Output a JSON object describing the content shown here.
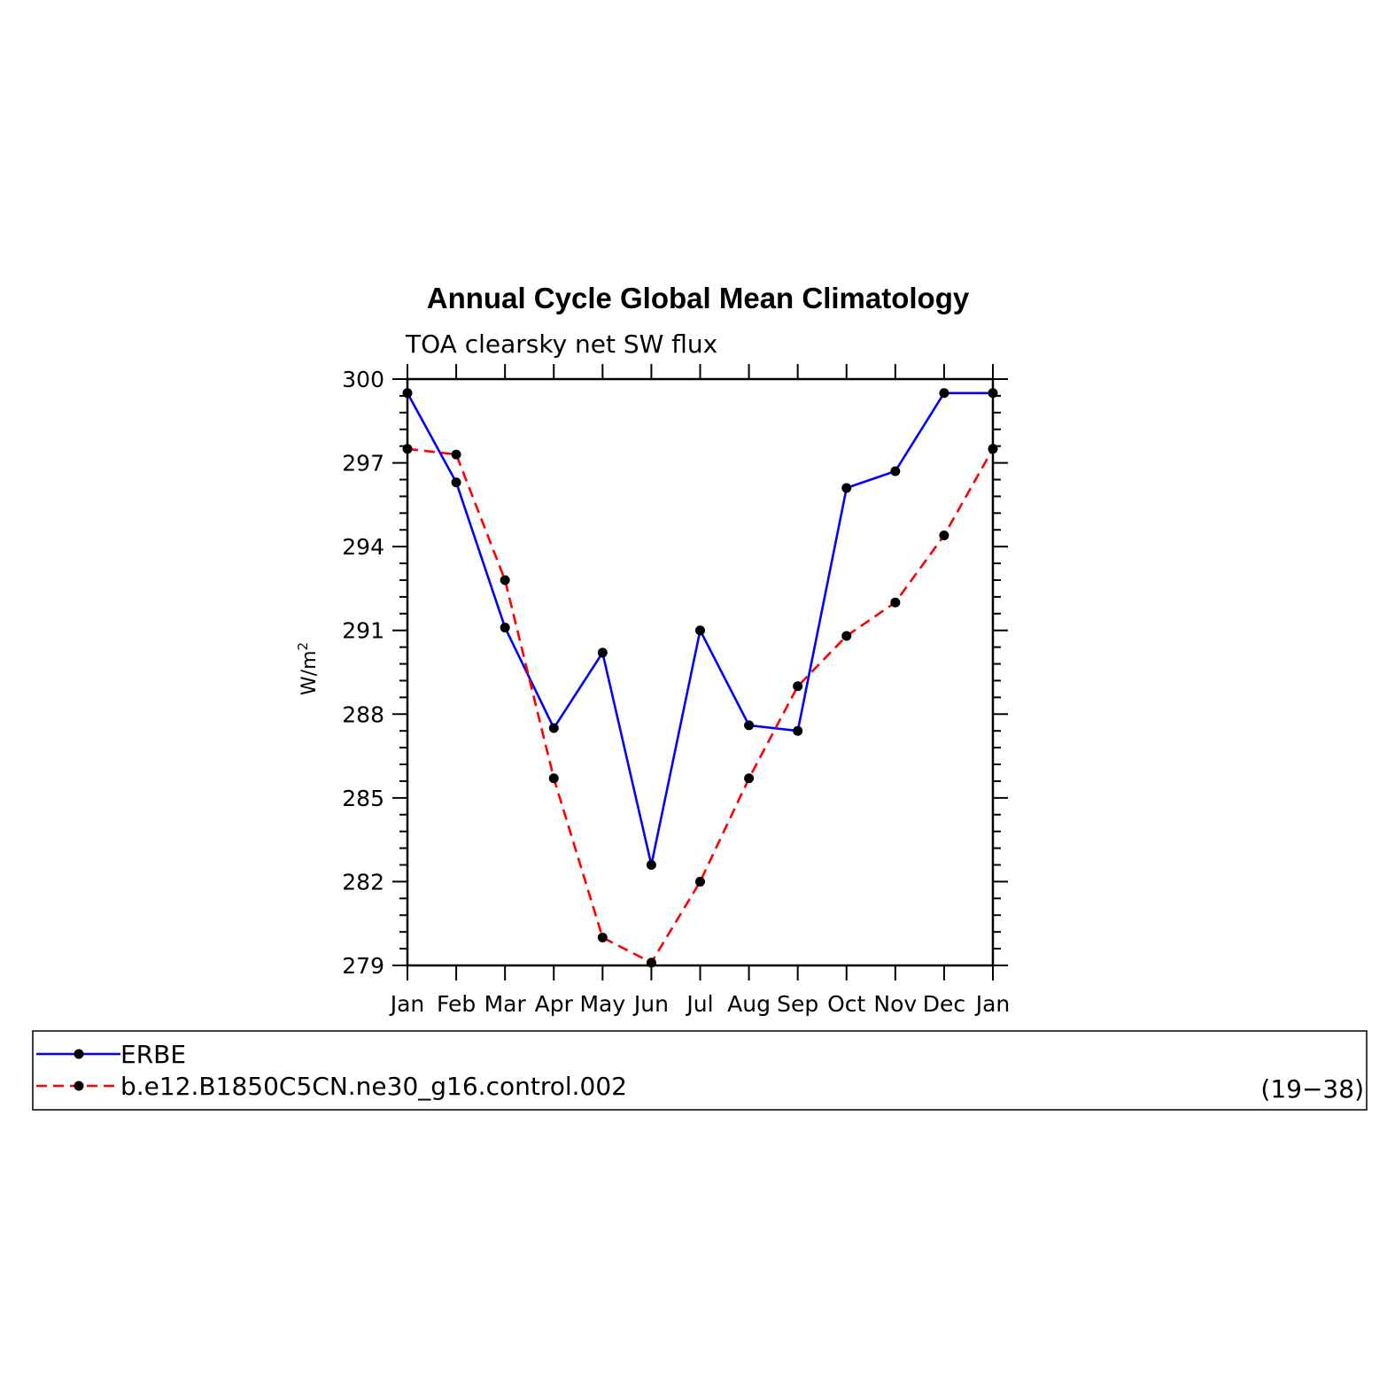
{
  "chart_data": {
    "type": "line",
    "title": "Annual Cycle Global Mean Climatology",
    "subtitle": "TOA clearsky net SW flux",
    "ylabel_base": "W/m",
    "ylabel_sup": "2",
    "ylim": [
      279,
      300
    ],
    "y_ticks": [
      279,
      282,
      285,
      288,
      291,
      294,
      297,
      300
    ],
    "categories": [
      "Jan",
      "Feb",
      "Mar",
      "Apr",
      "May",
      "Jun",
      "Jul",
      "Aug",
      "Sep",
      "Oct",
      "Nov",
      "Dec",
      "Jan"
    ],
    "series": [
      {
        "name": "ERBE",
        "color": "#0000ff",
        "dash": "solid",
        "values": [
          299.5,
          296.3,
          291.1,
          287.5,
          290.2,
          282.6,
          291.0,
          287.6,
          287.4,
          296.1,
          296.7,
          299.5,
          299.5
        ]
      },
      {
        "name": "b.e12.B1850C5CN.ne30_g16.control.002",
        "color": "#ff0000",
        "dash": "dashed",
        "values": [
          297.5,
          297.3,
          292.8,
          285.7,
          280.0,
          279.1,
          282.0,
          285.7,
          289.0,
          290.8,
          292.0,
          294.4,
          297.5
        ]
      }
    ],
    "marker_color": "#000000",
    "grid": false,
    "legend_position": "bottom",
    "legend_note": "(19−38)"
  }
}
